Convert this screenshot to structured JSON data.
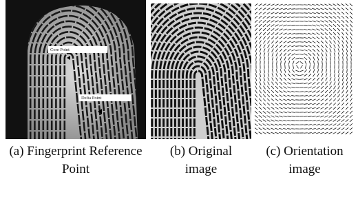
{
  "panels": [
    {
      "caption": "(a) Fingerprint Reference Point",
      "annotations": [
        "Core Point",
        "Delta Point"
      ]
    },
    {
      "caption": "(b) Original image"
    },
    {
      "caption": "(c) Orientation image"
    }
  ]
}
